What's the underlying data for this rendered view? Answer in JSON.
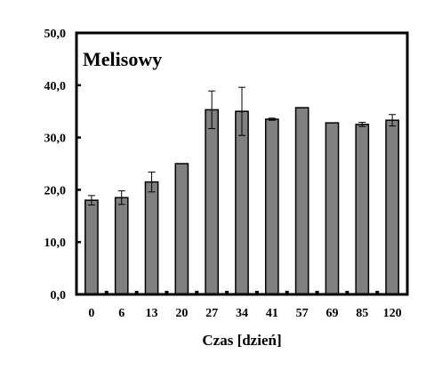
{
  "chart_data": {
    "type": "bar",
    "title": "Melisowy",
    "xlabel": "Czas [dzień]",
    "ylabel": "",
    "ylim": [
      0,
      50
    ],
    "yticks": [
      "0,0",
      "10,0",
      "20,0",
      "30,0",
      "40,0",
      "50,0"
    ],
    "categories": [
      "0",
      "6",
      "13",
      "20",
      "27",
      "34",
      "41",
      "57",
      "69",
      "85",
      "120"
    ],
    "values": [
      18.0,
      18.5,
      21.5,
      25.0,
      35.3,
      35.0,
      33.5,
      35.7,
      32.8,
      32.5,
      33.3
    ],
    "errors": [
      0.9,
      1.3,
      1.9,
      0.1,
      3.6,
      4.6,
      0.2,
      0.1,
      0.1,
      0.4,
      1.1
    ],
    "grid": false,
    "legend": "none",
    "colors": {
      "bar_fill": "#808080",
      "bar_stroke": "#000000",
      "frame": "#000000",
      "background": "#ffffff"
    }
  }
}
